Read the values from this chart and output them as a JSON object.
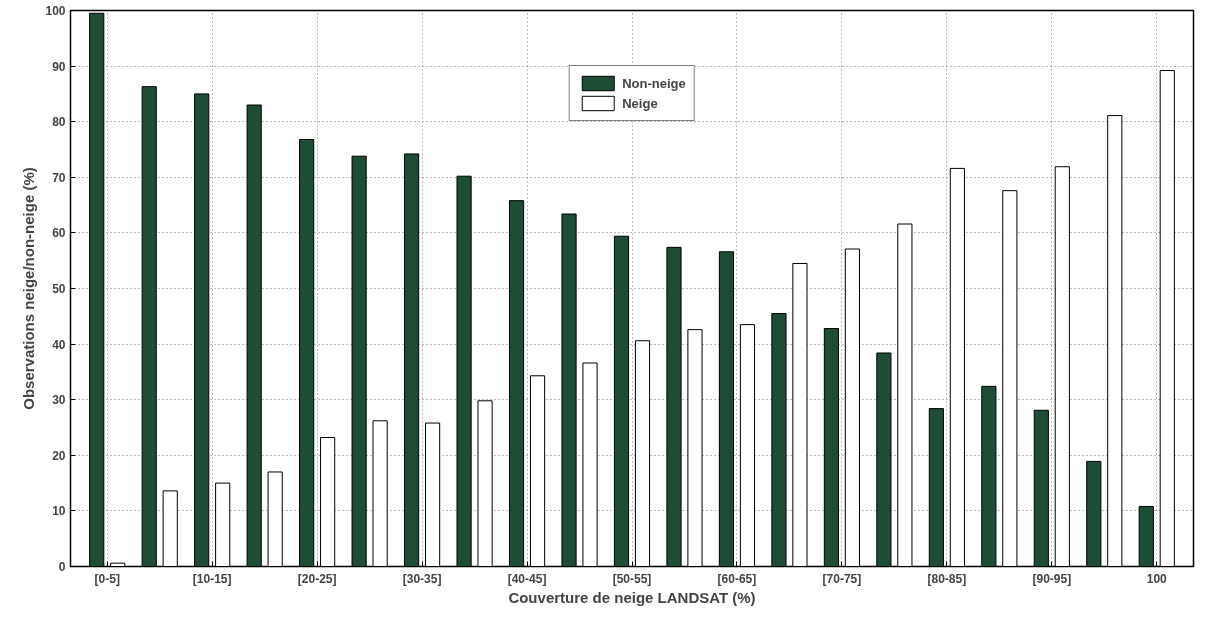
{
  "chart_data": {
    "type": "bar",
    "xlabel": "Couverture de neige LANDSAT (%)",
    "ylabel": "Observations neige/non-neige (%)",
    "categories": [
      "[0-5]",
      null,
      "[10-15]",
      null,
      "[20-25]",
      null,
      "[30-35]",
      null,
      "[40-45]",
      null,
      "[50-55]",
      null,
      "[60-65]",
      null,
      "[70-75]",
      null,
      "[80-85]",
      null,
      "[90-95]",
      null,
      "100"
    ],
    "series": [
      {
        "name": "Non-neige",
        "color": "#1e4d35",
        "values": [
          99.5,
          86.3,
          85,
          83,
          76.8,
          73.8,
          74.2,
          70.2,
          65.8,
          63.4,
          59.4,
          57.4,
          56.6,
          45.5,
          42.8,
          38.4,
          28.4,
          32.4,
          28.1,
          18.9,
          10.8
        ]
      },
      {
        "name": "Neige",
        "color": "#ffffff",
        "values": [
          0.6,
          13.6,
          15,
          17,
          23.2,
          26.2,
          25.8,
          29.8,
          34.3,
          36.6,
          40.6,
          42.6,
          43.5,
          54.5,
          57.1,
          61.6,
          71.6,
          67.6,
          71.9,
          81.1,
          89.2
        ]
      }
    ],
    "ylim": [
      0,
      100
    ],
    "yticks": [
      0,
      10,
      20,
      30,
      40,
      50,
      60,
      70,
      80,
      90,
      100
    ],
    "grid": true,
    "legend": "top"
  }
}
